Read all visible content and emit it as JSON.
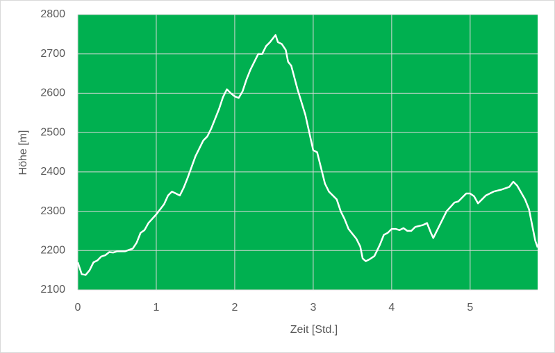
{
  "chart_data": {
    "type": "line",
    "x_label": "Zeit [Std.]",
    "y_label": "Höhe [m]",
    "x": [
      0,
      0.05,
      0.1,
      0.15,
      0.2,
      0.25,
      0.3,
      0.35,
      0.4,
      0.45,
      0.5,
      0.6,
      0.7,
      0.75,
      0.8,
      0.85,
      0.9,
      1.0,
      1.05,
      1.1,
      1.15,
      1.2,
      1.25,
      1.3,
      1.35,
      1.4,
      1.5,
      1.6,
      1.65,
      1.7,
      1.8,
      1.85,
      1.9,
      1.95,
      2.0,
      2.05,
      2.1,
      2.15,
      2.2,
      2.3,
      2.35,
      2.4,
      2.45,
      2.52,
      2.55,
      2.6,
      2.65,
      2.68,
      2.72,
      2.8,
      2.9,
      2.95,
      3.0,
      3.05,
      3.1,
      3.15,
      3.2,
      3.3,
      3.35,
      3.4,
      3.45,
      3.55,
      3.6,
      3.63,
      3.67,
      3.72,
      3.78,
      3.85,
      3.9,
      3.95,
      4.0,
      4.05,
      4.1,
      4.15,
      4.2,
      4.25,
      4.3,
      4.4,
      4.45,
      4.5,
      4.53,
      4.6,
      4.7,
      4.8,
      4.85,
      4.95,
      5.0,
      5.05,
      5.1,
      5.15,
      5.2,
      5.3,
      5.4,
      5.5,
      5.55,
      5.6,
      5.7,
      5.75,
      5.8,
      5.83,
      5.86
    ],
    "series": [
      {
        "color": "#ffffff",
        "values": [
          2170,
          2140,
          2138,
          2150,
          2170,
          2175,
          2185,
          2188,
          2196,
          2195,
          2198,
          2198,
          2205,
          2220,
          2245,
          2252,
          2270,
          2292,
          2305,
          2318,
          2340,
          2350,
          2345,
          2340,
          2360,
          2385,
          2440,
          2480,
          2490,
          2510,
          2560,
          2590,
          2610,
          2600,
          2592,
          2588,
          2605,
          2635,
          2660,
          2700,
          2700,
          2720,
          2730,
          2748,
          2730,
          2725,
          2710,
          2680,
          2670,
          2610,
          2545,
          2500,
          2455,
          2450,
          2410,
          2370,
          2350,
          2330,
          2300,
          2280,
          2255,
          2230,
          2210,
          2180,
          2173,
          2178,
          2186,
          2215,
          2240,
          2245,
          2255,
          2255,
          2252,
          2257,
          2250,
          2250,
          2260,
          2265,
          2270,
          2245,
          2232,
          2260,
          2300,
          2322,
          2325,
          2345,
          2345,
          2338,
          2320,
          2330,
          2340,
          2350,
          2355,
          2362,
          2375,
          2365,
          2330,
          2305,
          2255,
          2225,
          2208
        ]
      }
    ],
    "xlim": [
      0,
      5.86
    ],
    "xticks": [
      0,
      1,
      2,
      3,
      4,
      5
    ],
    "ylim": [
      2100,
      2800
    ],
    "yticks": [
      2100,
      2200,
      2300,
      2400,
      2500,
      2600,
      2700,
      2800
    ],
    "grid": true,
    "background": "#00b050"
  }
}
